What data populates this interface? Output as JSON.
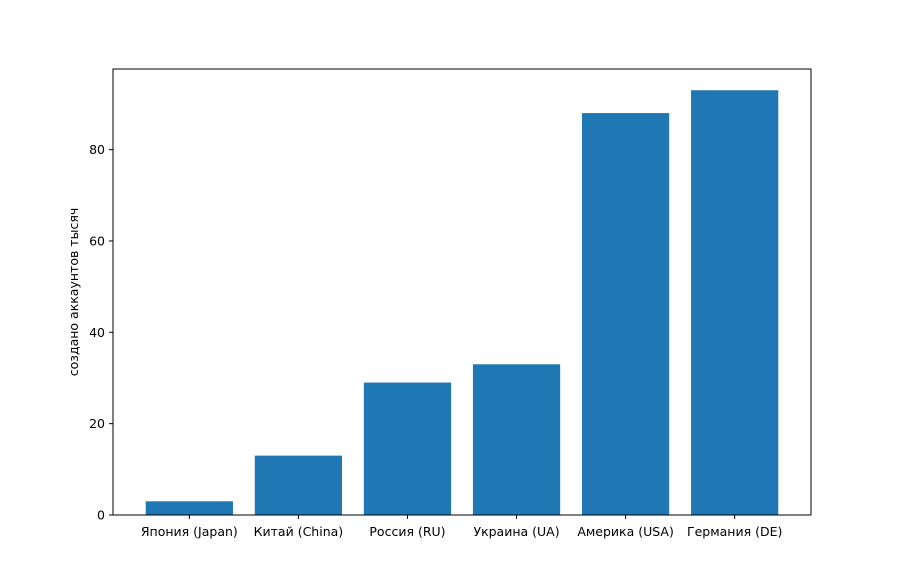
{
  "chart_data": {
    "type": "bar",
    "title": "",
    "xlabel": "",
    "ylabel": "создано аккаунтов тысяч",
    "categories": [
      "Япония (Japan)",
      "Китай (China)",
      "Россия (RU)",
      "Украина (UA)",
      "Америка (USA)",
      "Германия (DE)"
    ],
    "values": [
      3,
      13,
      29,
      33,
      88,
      93
    ],
    "ylim": [
      0,
      97.65
    ],
    "yticks": [
      0,
      20,
      40,
      60,
      80
    ],
    "grid": false,
    "bar_color": "#1f77b4"
  }
}
